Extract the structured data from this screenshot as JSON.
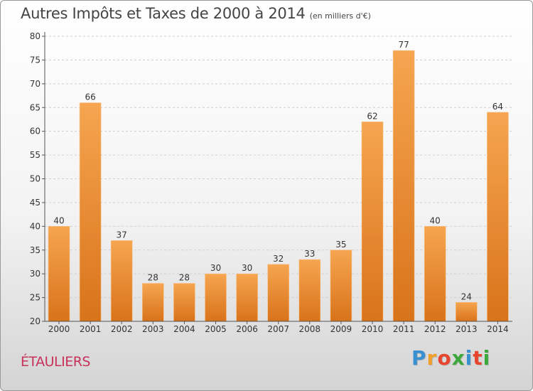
{
  "header": {
    "title": "Autres Impôts et Taxes de 2000 à 2014",
    "subtitle": "(en milliers d'€)"
  },
  "footer": {
    "commune": "ÉTAULIERS",
    "brand": {
      "letters": [
        "P",
        "r",
        "o",
        "x",
        "i",
        "t",
        "i"
      ],
      "colors": [
        "#3a8fd0",
        "#f0a02a",
        "#e8452e",
        "#3aa83a",
        "#3a8fd0",
        "#e8452e",
        "#3aa83a"
      ]
    }
  },
  "colors": {
    "bar_top": "#f6a550",
    "bar_bottom": "#d8731a",
    "grid": "#cfcfcf",
    "axis": "#555555",
    "text": "#333333"
  },
  "chart_data": {
    "type": "bar",
    "categories": [
      "2000",
      "2001",
      "2002",
      "2003",
      "2004",
      "2005",
      "2006",
      "2007",
      "2008",
      "2009",
      "2010",
      "2011",
      "2012",
      "2013",
      "2014"
    ],
    "values": [
      40,
      66,
      37,
      28,
      28,
      30,
      30,
      32,
      33,
      35,
      62,
      77,
      40,
      24,
      64
    ],
    "ylim": [
      20,
      80
    ],
    "yticks": [
      20,
      25,
      30,
      35,
      40,
      45,
      50,
      55,
      60,
      65,
      70,
      75,
      80
    ],
    "grid": "horizontal-dashed",
    "legend": "none"
  }
}
